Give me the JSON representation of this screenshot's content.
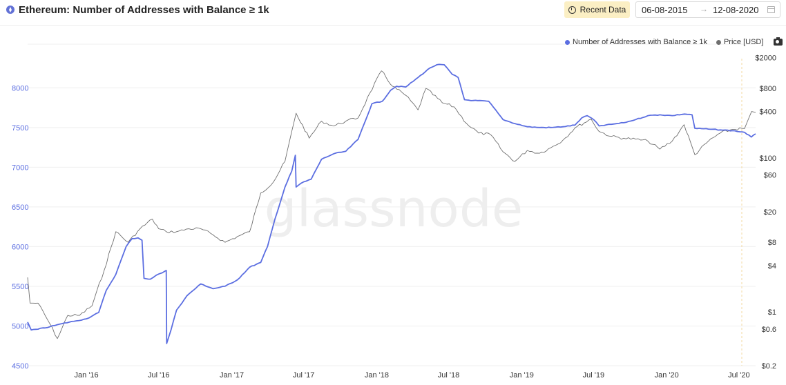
{
  "header": {
    "title": "Ethereum: Number of Addresses with Balance ≥ 1k",
    "recent_label": "Recent Data",
    "date_start": "06-08-2015",
    "date_arrow": "→",
    "date_end": "12-08-2020"
  },
  "legend": {
    "items": [
      {
        "label": "Number of Addresses with Balance ≥ 1k",
        "color": "#5b6ee1"
      },
      {
        "label": "Price [USD]",
        "color": "#6f6f6f"
      }
    ]
  },
  "watermark": "glassnode",
  "chart_data": {
    "type": "line",
    "xlim": [
      "2015-08-06",
      "2020-08-12"
    ],
    "x_ticks": [
      "Jan '16",
      "Jul '16",
      "Jan '17",
      "Jul '17",
      "Jan '18",
      "Jul '18",
      "Jan '19",
      "Jul '19",
      "Jan '20",
      "Jul '20"
    ],
    "y_left": {
      "ticks": [
        "8000",
        "7500",
        "7000",
        "6500",
        "6000",
        "5500",
        "5000",
        "4500"
      ],
      "range": [
        4500,
        8550
      ],
      "color": "#5b6ee1"
    },
    "y_right": {
      "ticks": [
        "$2000",
        "$800",
        "$400",
        "$100",
        "$60",
        "$20",
        "$8",
        "$4",
        "$1",
        "$0.6",
        "$0.2"
      ],
      "scale": "log",
      "range": [
        0.2,
        3000
      ]
    },
    "series": [
      {
        "name": "Number of Addresses with Balance ≥ 1k",
        "axis": "left",
        "color": "#5b6ee1",
        "points": [
          [
            "2015-08-06",
            5050
          ],
          [
            "2015-08-15",
            4950
          ],
          [
            "2015-09-01",
            4960
          ],
          [
            "2015-10-01",
            4990
          ],
          [
            "2015-11-01",
            5030
          ],
          [
            "2015-12-01",
            5060
          ],
          [
            "2016-01-01",
            5090
          ],
          [
            "2016-02-01",
            5170
          ],
          [
            "2016-02-20",
            5450
          ],
          [
            "2016-03-15",
            5650
          ],
          [
            "2016-04-10",
            6000
          ],
          [
            "2016-04-25",
            6100
          ],
          [
            "2016-05-10",
            6110
          ],
          [
            "2016-05-20",
            6080
          ],
          [
            "2016-05-25",
            5600
          ],
          [
            "2016-06-10",
            5590
          ],
          [
            "2016-06-25",
            5640
          ],
          [
            "2016-07-10",
            5670
          ],
          [
            "2016-07-20",
            5700
          ],
          [
            "2016-07-21",
            4780
          ],
          [
            "2016-08-01",
            4950
          ],
          [
            "2016-08-15",
            5200
          ],
          [
            "2016-09-10",
            5380
          ],
          [
            "2016-10-15",
            5530
          ],
          [
            "2016-11-15",
            5470
          ],
          [
            "2016-12-15",
            5500
          ],
          [
            "2017-01-15",
            5580
          ],
          [
            "2017-02-15",
            5740
          ],
          [
            "2017-03-15",
            5800
          ],
          [
            "2017-04-01",
            6000
          ],
          [
            "2017-04-20",
            6350
          ],
          [
            "2017-05-15",
            6750
          ],
          [
            "2017-06-01",
            6950
          ],
          [
            "2017-06-10",
            7150
          ],
          [
            "2017-06-12",
            6750
          ],
          [
            "2017-06-25",
            6800
          ],
          [
            "2017-07-20",
            6850
          ],
          [
            "2017-08-15",
            7100
          ],
          [
            "2017-09-15",
            7170
          ],
          [
            "2017-10-15",
            7200
          ],
          [
            "2017-11-15",
            7350
          ],
          [
            "2017-12-20",
            7800
          ],
          [
            "2018-01-15",
            7830
          ],
          [
            "2018-02-05",
            7970
          ],
          [
            "2018-02-20",
            8020
          ],
          [
            "2018-03-15",
            8010
          ],
          [
            "2018-04-15",
            8130
          ],
          [
            "2018-05-15",
            8250
          ],
          [
            "2018-06-01",
            8290
          ],
          [
            "2018-06-20",
            8290
          ],
          [
            "2018-07-10",
            8170
          ],
          [
            "2018-07-25",
            8130
          ],
          [
            "2018-08-10",
            7850
          ],
          [
            "2018-09-01",
            7840
          ],
          [
            "2018-10-10",
            7830
          ],
          [
            "2018-11-15",
            7600
          ],
          [
            "2018-12-15",
            7550
          ],
          [
            "2019-01-15",
            7510
          ],
          [
            "2019-02-15",
            7500
          ],
          [
            "2019-03-15",
            7500
          ],
          [
            "2019-04-15",
            7510
          ],
          [
            "2019-05-15",
            7530
          ],
          [
            "2019-06-01",
            7620
          ],
          [
            "2019-06-15",
            7650
          ],
          [
            "2019-07-01",
            7600
          ],
          [
            "2019-07-15",
            7520
          ],
          [
            "2019-08-15",
            7540
          ],
          [
            "2019-09-15",
            7560
          ],
          [
            "2019-10-15",
            7600
          ],
          [
            "2019-11-15",
            7650
          ],
          [
            "2019-12-15",
            7660
          ],
          [
            "2020-01-15",
            7650
          ],
          [
            "2020-02-15",
            7670
          ],
          [
            "2020-03-05",
            7660
          ],
          [
            "2020-03-12",
            7490
          ],
          [
            "2020-04-15",
            7480
          ],
          [
            "2020-05-15",
            7470
          ],
          [
            "2020-06-15",
            7460
          ],
          [
            "2020-07-15",
            7440
          ],
          [
            "2020-08-01",
            7380
          ],
          [
            "2020-08-12",
            7420
          ]
        ]
      },
      {
        "name": "Price [USD]",
        "axis": "right",
        "color": "#6f6f6f",
        "points": [
          [
            "2015-08-06",
            2.8
          ],
          [
            "2015-08-12",
            1.3
          ],
          [
            "2015-09-01",
            1.3
          ],
          [
            "2015-10-01",
            0.7
          ],
          [
            "2015-10-20",
            0.45
          ],
          [
            "2015-11-15",
            0.9
          ],
          [
            "2015-12-15",
            0.9
          ],
          [
            "2016-01-15",
            1.2
          ],
          [
            "2016-02-15",
            3.5
          ],
          [
            "2016-03-15",
            11
          ],
          [
            "2016-04-15",
            8
          ],
          [
            "2016-05-15",
            12
          ],
          [
            "2016-06-15",
            16
          ],
          [
            "2016-07-01",
            12
          ],
          [
            "2016-07-20",
            11
          ],
          [
            "2016-08-15",
            11
          ],
          [
            "2016-09-15",
            12
          ],
          [
            "2016-10-15",
            12
          ],
          [
            "2016-11-15",
            10
          ],
          [
            "2016-12-15",
            8
          ],
          [
            "2017-01-15",
            9.5
          ],
          [
            "2017-02-15",
            11
          ],
          [
            "2017-03-15",
            35
          ],
          [
            "2017-04-15",
            48
          ],
          [
            "2017-05-15",
            90
          ],
          [
            "2017-06-12",
            380
          ],
          [
            "2017-07-15",
            180
          ],
          [
            "2017-08-15",
            300
          ],
          [
            "2017-09-15",
            260
          ],
          [
            "2017-10-15",
            300
          ],
          [
            "2017-11-15",
            330
          ],
          [
            "2017-12-15",
            700
          ],
          [
            "2018-01-13",
            1350
          ],
          [
            "2018-02-10",
            850
          ],
          [
            "2018-03-15",
            650
          ],
          [
            "2018-04-15",
            420
          ],
          [
            "2018-05-05",
            800
          ],
          [
            "2018-06-15",
            520
          ],
          [
            "2018-07-15",
            460
          ],
          [
            "2018-08-15",
            280
          ],
          [
            "2018-09-15",
            210
          ],
          [
            "2018-10-15",
            200
          ],
          [
            "2018-11-15",
            120
          ],
          [
            "2018-12-15",
            90
          ],
          [
            "2019-01-15",
            125
          ],
          [
            "2019-02-15",
            115
          ],
          [
            "2019-03-15",
            135
          ],
          [
            "2019-04-15",
            170
          ],
          [
            "2019-05-15",
            245
          ],
          [
            "2019-06-25",
            320
          ],
          [
            "2019-07-15",
            220
          ],
          [
            "2019-08-15",
            190
          ],
          [
            "2019-09-15",
            180
          ],
          [
            "2019-10-15",
            175
          ],
          [
            "2019-11-15",
            165
          ],
          [
            "2019-12-15",
            130
          ],
          [
            "2020-01-15",
            165
          ],
          [
            "2020-02-14",
            270
          ],
          [
            "2020-03-12",
            110
          ],
          [
            "2020-04-15",
            165
          ],
          [
            "2020-05-15",
            210
          ],
          [
            "2020-06-15",
            235
          ],
          [
            "2020-07-15",
            240
          ],
          [
            "2020-07-25",
            320
          ],
          [
            "2020-08-02",
            400
          ],
          [
            "2020-08-12",
            390
          ]
        ]
      }
    ],
    "grid": true,
    "legend_position": "top-right"
  }
}
